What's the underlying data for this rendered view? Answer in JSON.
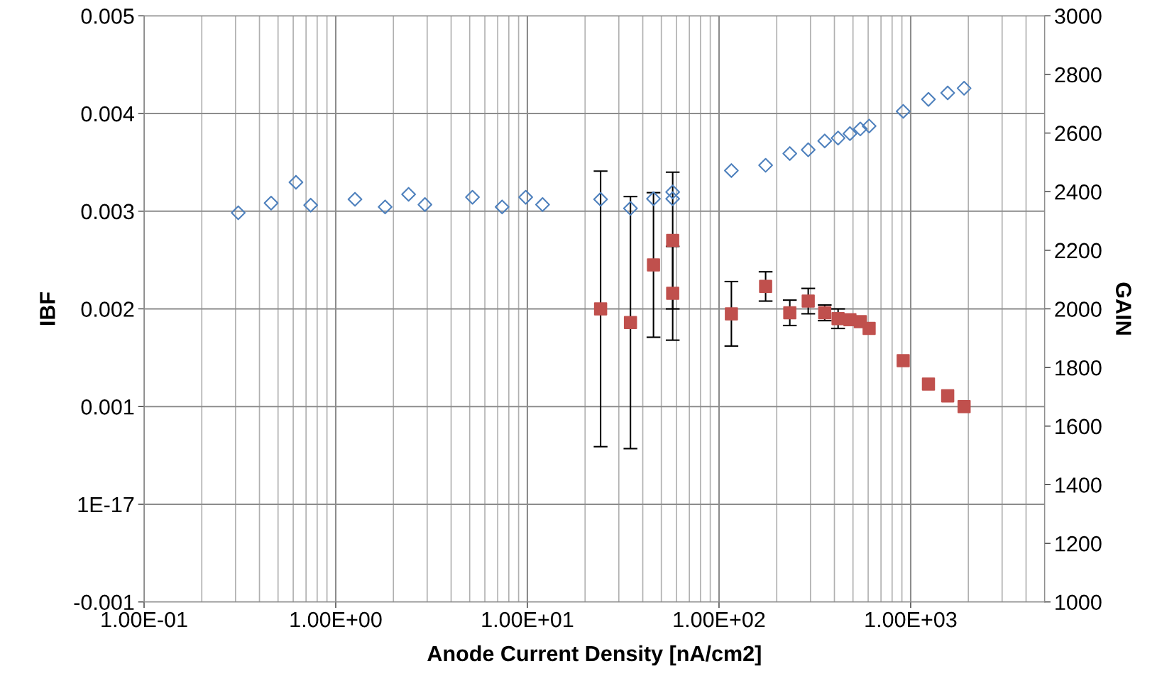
{
  "chart_data": {
    "type": "scatter",
    "xlabel": "Anode Current Density [nA/cm2]",
    "ylabel": "IBF",
    "y2label": "GAIN",
    "log": "x",
    "grid": true,
    "legend": false,
    "xlim": [
      0.1,
      5000
    ],
    "xticks": [
      {
        "value": 0.1,
        "label": "1.00E-01"
      },
      {
        "value": 1,
        "label": "1.00E+00"
      },
      {
        "value": 10,
        "label": "1.00E+01"
      },
      {
        "value": 100,
        "label": "1.00E+02"
      },
      {
        "value": 1000,
        "label": "1.00E+03"
      }
    ],
    "ylim": [
      -0.001,
      0.005
    ],
    "yticks": [
      -0.001,
      {
        "value": 0,
        "label": "1E-17"
      },
      0.001,
      0.002,
      0.003,
      0.004,
      0.005
    ],
    "y2lim": [
      1000,
      3000
    ],
    "y2ticks": [
      1000,
      1200,
      1400,
      1600,
      1800,
      2000,
      2200,
      2400,
      2600,
      2800,
      3000
    ],
    "series": [
      {
        "axis": "y2",
        "marker": "diamond",
        "color": "#4f81bd",
        "x": [
          0.31,
          0.46,
          0.62,
          0.74,
          1.26,
          1.81,
          2.4,
          2.92,
          5.17,
          7.38,
          9.8,
          12.0,
          24.1,
          34.5,
          45.5,
          57.3,
          57.3,
          116,
          175,
          234,
          292,
          356,
          418,
          482,
          546,
          607,
          914,
          1238,
          1560,
          1900
        ],
        "values": [
          2328,
          2361,
          2432,
          2354,
          2374,
          2348,
          2391,
          2356,
          2381,
          2348,
          2381,
          2356,
          2374,
          2343,
          2376,
          2399,
          2376,
          2472,
          2490,
          2530,
          2543,
          2573,
          2583,
          2598,
          2614,
          2624,
          2674,
          2715,
          2737,
          2753
        ]
      },
      {
        "axis": "y",
        "marker": "square",
        "color": "#c0504d",
        "x": [
          24.1,
          34.5,
          45.5,
          57.3,
          57.3,
          116,
          175,
          234,
          292,
          356,
          418,
          482,
          546,
          607,
          914,
          1238,
          1560,
          1900
        ],
        "values": [
          0.002,
          0.00186,
          0.00245,
          0.0027,
          0.00216,
          0.00195,
          0.00223,
          0.00196,
          0.00208,
          0.00196,
          0.0019,
          0.00189,
          0.00187,
          0.0018,
          0.00147,
          0.00123,
          0.00111,
          0.001
        ],
        "errors": [
          0.00141,
          0.00129,
          0.00074,
          0.0007,
          0.00048,
          0.00033,
          0.00015,
          0.00013,
          0.00013,
          8e-05,
          0.0001,
          null,
          null,
          null,
          null,
          null,
          null,
          null
        ]
      }
    ]
  }
}
